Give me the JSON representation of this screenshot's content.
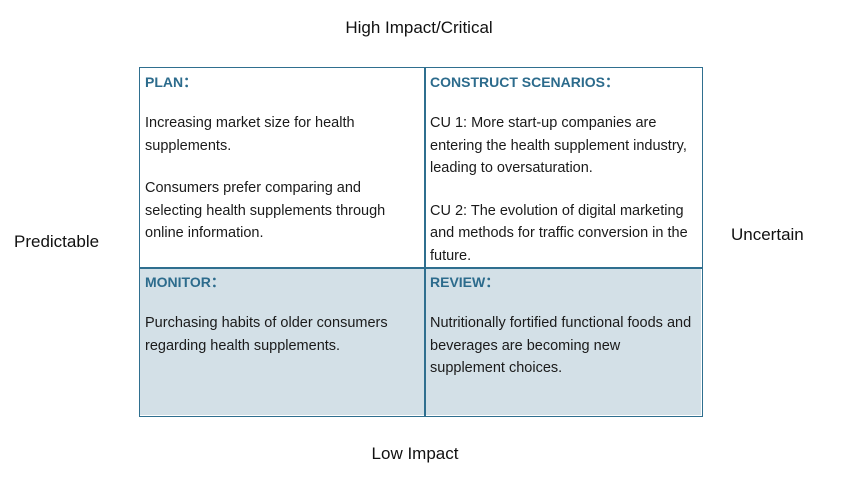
{
  "axes": {
    "top": "High Impact/Critical",
    "bottom": "Low Impact",
    "left": "Predictable",
    "right": "Uncertain"
  },
  "quadrants": {
    "plan": {
      "title": "PLAN：",
      "items": [
        "Increasing market size for health supplements.",
        "Consumers prefer comparing and selecting health supplements through online information."
      ]
    },
    "construct_scenarios": {
      "title": "CONSTRUCT SCENARIOS：",
      "items": [
        "CU 1: More start-up companies are entering the health supplement industry, leading to oversaturation.",
        "CU 2: The evolution of digital marketing and methods for traffic conversion in the future."
      ]
    },
    "monitor": {
      "title": "MONITOR：",
      "items": [
        "Purchasing habits of older consumers regarding health supplements."
      ]
    },
    "review": {
      "title": "REVIEW：",
      "items": [
        "Nutritionally fortified functional foods and beverages are becoming new supplement choices."
      ]
    }
  },
  "colors": {
    "border": "#2f6f8f",
    "title_text": "#2c6b8c",
    "bottom_fill": "#d3e0e7",
    "top_fill": "#ffffff"
  }
}
